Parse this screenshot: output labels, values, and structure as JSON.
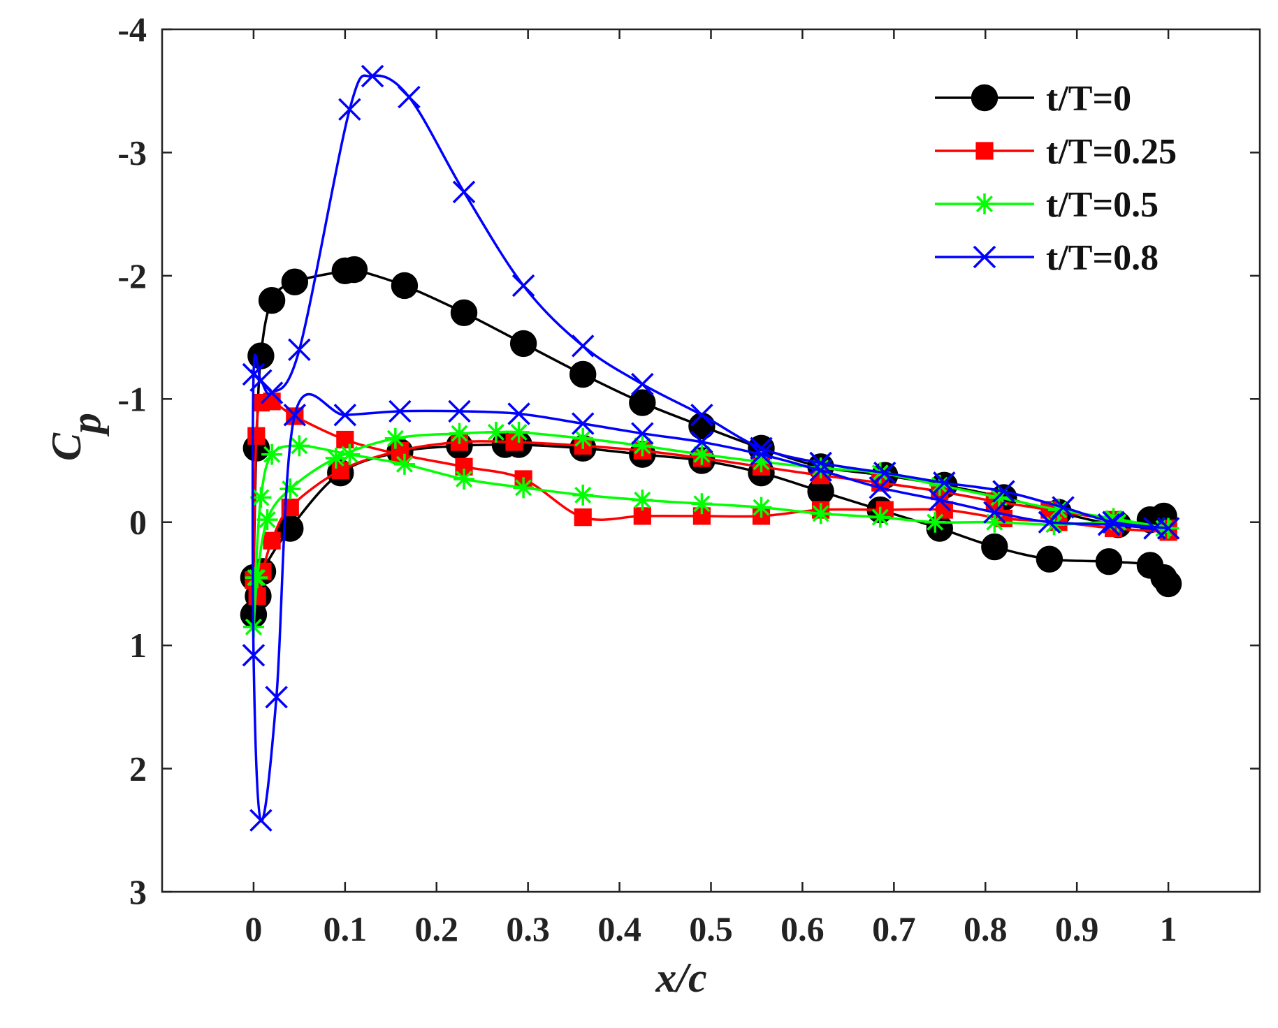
{
  "chart_data": {
    "type": "line",
    "title": "",
    "xlabel": "x/c",
    "ylabel_main": "C",
    "ylabel_sub": "p",
    "xlim": [
      -0.1,
      1.1
    ],
    "ylim": [
      3,
      -4
    ],
    "y_reversed": true,
    "grid": false,
    "legend_position": "top-right",
    "x_ticks": [
      0,
      0.1,
      0.2,
      0.3,
      0.4,
      0.5,
      0.6,
      0.7,
      0.8,
      0.9,
      1
    ],
    "x_tick_labels": [
      "0",
      "0.1",
      "0.2",
      "0.3",
      "0.4",
      "0.5",
      "0.6",
      "0.7",
      "0.8",
      "0.9",
      "1"
    ],
    "y_ticks": [
      -4,
      -3,
      -2,
      -1,
      0,
      1,
      2,
      3
    ],
    "y_tick_labels": [
      "-4",
      "-3",
      "-2",
      "-1",
      "0",
      "1",
      "2",
      "3"
    ],
    "series": [
      {
        "name": "t/T=0",
        "color": "#000000",
        "marker": "circle",
        "x": [
          0.995,
          0.98,
          0.945,
          0.88,
          0.82,
          0.755,
          0.69,
          0.62,
          0.555,
          0.49,
          0.425,
          0.36,
          0.295,
          0.23,
          0.165,
          0.11,
          0.1,
          0.045,
          0.02,
          0.008,
          0.003,
          0.0,
          0.0,
          0.005,
          0.01,
          0.04,
          0.095,
          0.16,
          0.225,
          0.275,
          0.29,
          0.36,
          0.425,
          0.49,
          0.555,
          0.62,
          0.685,
          0.75,
          0.81,
          0.87,
          0.935,
          0.98,
          0.995,
          1.0
        ],
        "y": [
          -0.05,
          -0.02,
          0.02,
          -0.08,
          -0.2,
          -0.3,
          -0.38,
          -0.45,
          -0.6,
          -0.78,
          -0.97,
          -1.2,
          -1.45,
          -1.7,
          -1.92,
          -2.05,
          -2.04,
          -1.95,
          -1.8,
          -1.35,
          -0.6,
          0.45,
          0.75,
          0.6,
          0.4,
          0.05,
          -0.4,
          -0.57,
          -0.62,
          -0.63,
          -0.63,
          -0.6,
          -0.55,
          -0.5,
          -0.4,
          -0.25,
          -0.1,
          0.05,
          0.2,
          0.3,
          0.32,
          0.35,
          0.45,
          0.5
        ]
      },
      {
        "name": "t/T=0.25",
        "color": "#ff0000",
        "marker": "square",
        "x": [
          1.0,
          0.94,
          0.88,
          0.82,
          0.755,
          0.69,
          0.62,
          0.555,
          0.49,
          0.425,
          0.36,
          0.295,
          0.23,
          0.16,
          0.1,
          0.045,
          0.02,
          0.008,
          0.003,
          0.0,
          0.004,
          0.01,
          0.02,
          0.04,
          0.095,
          0.16,
          0.225,
          0.285,
          0.36,
          0.425,
          0.49,
          0.555,
          0.62,
          0.685,
          0.75,
          0.81,
          0.87,
          0.94,
          1.0
        ],
        "y": [
          0.08,
          0.05,
          0.0,
          -0.03,
          -0.1,
          -0.1,
          -0.1,
          -0.05,
          -0.05,
          -0.05,
          -0.04,
          -0.35,
          -0.45,
          -0.55,
          -0.67,
          -0.86,
          -0.98,
          -0.97,
          -0.7,
          0.47,
          0.6,
          0.4,
          0.15,
          -0.12,
          -0.42,
          -0.58,
          -0.65,
          -0.65,
          -0.62,
          -0.58,
          -0.52,
          -0.45,
          -0.38,
          -0.32,
          -0.25,
          -0.17,
          -0.1,
          -0.02,
          0.05
        ]
      },
      {
        "name": "t/T=0.5",
        "color": "#00ff00",
        "marker": "asterisk",
        "x": [
          0.995,
          0.945,
          0.875,
          0.81,
          0.745,
          0.685,
          0.62,
          0.555,
          0.49,
          0.425,
          0.36,
          0.295,
          0.23,
          0.165,
          0.105,
          0.05,
          0.02,
          0.008,
          0.002,
          0.0,
          0.004,
          0.015,
          0.04,
          0.09,
          0.155,
          0.225,
          0.265,
          0.29,
          0.36,
          0.425,
          0.49,
          0.555,
          0.62,
          0.685,
          0.75,
          0.815,
          0.88,
          0.94,
          1.0
        ],
        "y": [
          0.05,
          0.0,
          0.02,
          0.0,
          0.0,
          -0.04,
          -0.07,
          -0.12,
          -0.15,
          -0.18,
          -0.22,
          -0.28,
          -0.35,
          -0.47,
          -0.55,
          -0.62,
          -0.55,
          -0.2,
          0.45,
          0.85,
          0.45,
          -0.02,
          -0.27,
          -0.52,
          -0.68,
          -0.72,
          -0.73,
          -0.73,
          -0.68,
          -0.62,
          -0.55,
          -0.49,
          -0.44,
          -0.4,
          -0.3,
          -0.2,
          -0.1,
          -0.03,
          0.05
        ]
      },
      {
        "name": "t/T=0.8",
        "color": "#0000ff",
        "marker": "x",
        "x": [
          1.0,
          0.94,
          0.885,
          0.82,
          0.755,
          0.69,
          0.62,
          0.555,
          0.49,
          0.425,
          0.36,
          0.295,
          0.23,
          0.17,
          0.13,
          0.105,
          0.05,
          0.02,
          0.008,
          0.0,
          0.0,
          0.008,
          0.025,
          0.045,
          0.1,
          0.16,
          0.225,
          0.29,
          0.36,
          0.425,
          0.49,
          0.555,
          0.62,
          0.685,
          0.75,
          0.81,
          0.87,
          0.935,
          0.985
        ],
        "y": [
          0.05,
          0.0,
          -0.12,
          -0.25,
          -0.32,
          -0.4,
          -0.48,
          -0.6,
          -0.87,
          -1.12,
          -1.43,
          -1.92,
          -2.68,
          -3.45,
          -3.62,
          -3.35,
          -1.4,
          -1.05,
          -1.15,
          -1.2,
          1.08,
          2.42,
          1.42,
          -0.87,
          -0.87,
          -0.9,
          -0.9,
          -0.88,
          -0.8,
          -0.72,
          -0.65,
          -0.55,
          -0.42,
          -0.28,
          -0.18,
          -0.08,
          0.0,
          0.02,
          0.05
        ]
      }
    ]
  }
}
